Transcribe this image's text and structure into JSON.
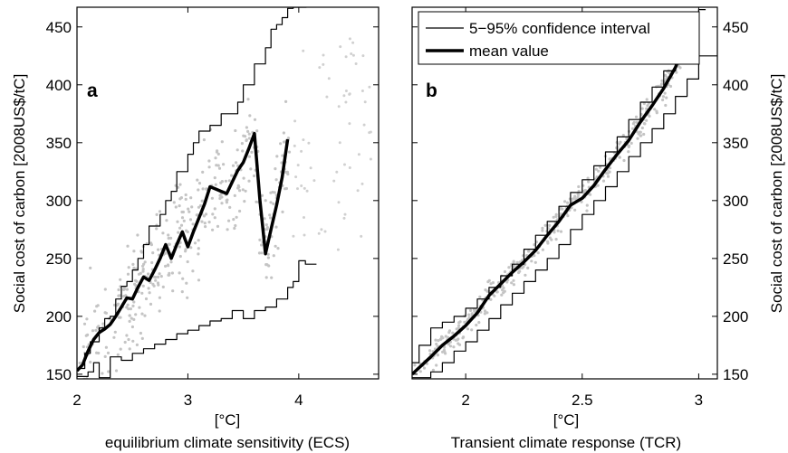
{
  "chart_data": [
    {
      "type": "line",
      "panel_label": "a",
      "xlabel_line1": "[°C]",
      "xlabel_line2": "equilibrium climate sensitivity (ECS)",
      "ylabel": "Social cost of carbon [2008US$/tC]",
      "xlim": [
        2,
        4.72
      ],
      "ylim": [
        146,
        467
      ],
      "xticks": [
        2,
        3,
        4
      ],
      "yticks": [
        150,
        200,
        250,
        300,
        350,
        400,
        450
      ],
      "grid": false,
      "series": [
        {
          "name": "mean value",
          "style": "thick-line",
          "x": [
            2.0,
            2.05,
            2.1,
            2.15,
            2.2,
            2.25,
            2.3,
            2.35,
            2.4,
            2.45,
            2.5,
            2.55,
            2.6,
            2.65,
            2.7,
            2.75,
            2.8,
            2.85,
            2.9,
            2.95,
            3.0,
            3.05,
            3.1,
            3.15,
            3.2,
            3.25,
            3.3,
            3.35,
            3.4,
            3.45,
            3.5,
            3.55,
            3.6,
            3.65,
            3.7,
            3.75,
            3.8,
            3.85,
            3.9
          ],
          "y": [
            153,
            158,
            170,
            180,
            186,
            189,
            193,
            200,
            208,
            216,
            215,
            225,
            234,
            231,
            240,
            250,
            262,
            250,
            262,
            273,
            260,
            273,
            285,
            297,
            312,
            310,
            308,
            306,
            316,
            326,
            333,
            345,
            358,
            300,
            254,
            275,
            296,
            320,
            353
          ]
        },
        {
          "name": "5–95% confidence interval (upper)",
          "style": "thin-step",
          "x": [
            2.0,
            2.07,
            2.12,
            2.2,
            2.25,
            2.3,
            2.35,
            2.4,
            2.45,
            2.5,
            2.55,
            2.6,
            2.65,
            2.75,
            2.8,
            2.85,
            2.9,
            3.0,
            3.05,
            3.1,
            3.2,
            3.3,
            3.45,
            3.5,
            3.6,
            3.7,
            3.75,
            3.8,
            3.85,
            3.9,
            3.95,
            4.0
          ],
          "y": [
            155,
            168,
            178,
            190,
            198,
            200,
            215,
            226,
            230,
            240,
            250,
            262,
            278,
            288,
            300,
            308,
            325,
            340,
            350,
            360,
            365,
            375,
            385,
            400,
            418,
            432,
            448,
            452,
            458,
            466,
            467,
            467
          ]
        },
        {
          "name": "5–95% confidence interval (lower)",
          "style": "thin-step",
          "x": [
            2.0,
            2.1,
            2.15,
            2.2,
            2.3,
            2.4,
            2.5,
            2.6,
            2.7,
            2.8,
            2.9,
            3.0,
            3.1,
            3.2,
            3.3,
            3.4,
            3.5,
            3.6,
            3.7,
            3.8,
            3.9,
            3.95,
            4.0,
            4.06
          ],
          "y": [
            148,
            152,
            160,
            147,
            165,
            162,
            168,
            172,
            176,
            180,
            185,
            188,
            192,
            196,
            198,
            205,
            198,
            205,
            208,
            215,
            225,
            230,
            248,
            245
          ]
        }
      ],
      "scatter_note": "light grey sample points"
    },
    {
      "type": "line",
      "panel_label": "b",
      "xlabel_line1": "[°C]",
      "xlabel_line2": "Transient climate response (TCR)",
      "ylabel": "Social cost of carbon [2008US$/tC]",
      "xlim": [
        1.77,
        3.08
      ],
      "ylim": [
        146,
        467
      ],
      "xticks": [
        2,
        2.5,
        3
      ],
      "xtick_labels": [
        "2",
        "2.5",
        "3"
      ],
      "yticks": [
        150,
        200,
        250,
        300,
        350,
        400,
        450
      ],
      "grid": false,
      "legend": {
        "placement": "top-left",
        "entries": [
          {
            "label": "5−95% confidence interval",
            "style": "thin"
          },
          {
            "label": "mean value",
            "style": "thick"
          }
        ]
      },
      "series": [
        {
          "name": "mean value",
          "style": "thick-line",
          "x": [
            1.77,
            1.85,
            1.9,
            1.95,
            2.0,
            2.05,
            2.1,
            2.15,
            2.2,
            2.25,
            2.3,
            2.35,
            2.4,
            2.45,
            2.5,
            2.55,
            2.6,
            2.65,
            2.7,
            2.75,
            2.8,
            2.85,
            2.9,
            2.95
          ],
          "y": [
            150,
            165,
            175,
            183,
            192,
            203,
            218,
            228,
            238,
            247,
            257,
            270,
            282,
            296,
            302,
            313,
            327,
            340,
            352,
            368,
            382,
            397,
            415,
            440
          ]
        },
        {
          "name": "5–95% confidence interval (upper)",
          "style": "thin-step",
          "x": [
            1.77,
            1.8,
            1.85,
            1.9,
            1.95,
            2.0,
            2.05,
            2.1,
            2.15,
            2.2,
            2.25,
            2.3,
            2.35,
            2.4,
            2.45,
            2.5,
            2.55,
            2.6,
            2.65,
            2.7,
            2.75,
            2.8,
            2.85,
            2.9,
            2.95,
            3.0
          ],
          "y": [
            160,
            175,
            190,
            195,
            200,
            207,
            215,
            225,
            235,
            245,
            258,
            270,
            282,
            295,
            307,
            318,
            330,
            342,
            355,
            370,
            385,
            398,
            412,
            430,
            450,
            465
          ]
        },
        {
          "name": "5–95% confidence interval (lower)",
          "style": "thin-step",
          "x": [
            1.77,
            1.85,
            1.9,
            1.95,
            2.0,
            2.05,
            2.1,
            2.15,
            2.2,
            2.25,
            2.3,
            2.35,
            2.4,
            2.45,
            2.5,
            2.55,
            2.6,
            2.65,
            2.7,
            2.75,
            2.8,
            2.85,
            2.9,
            2.95,
            3.0
          ],
          "y": [
            147,
            152,
            160,
            170,
            178,
            188,
            198,
            210,
            220,
            230,
            240,
            250,
            262,
            275,
            288,
            300,
            312,
            325,
            338,
            350,
            362,
            375,
            390,
            405,
            425
          ]
        }
      ],
      "scatter_note": "light grey sample points"
    }
  ]
}
